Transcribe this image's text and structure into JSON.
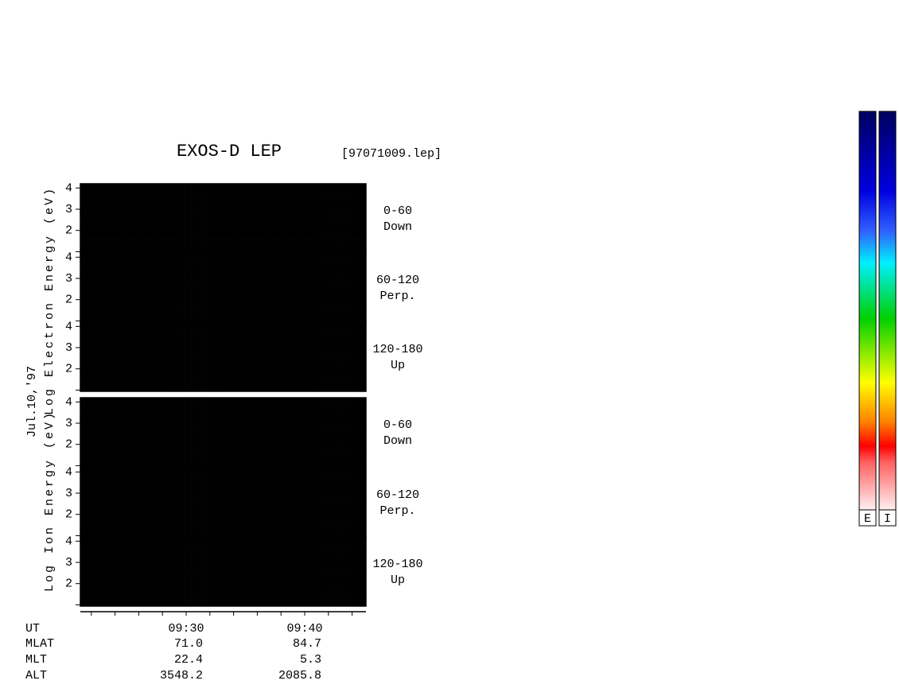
{
  "title": "EXOS-D LEP",
  "file": "[97071009.lep]",
  "date": "Jul.10,'97",
  "groups": [
    {
      "ylabel": "Log Electron Energy (eV)",
      "panels": [
        {
          "range": "0-60",
          "dir": "Down"
        },
        {
          "range": "60-120",
          "dir": "Perp."
        },
        {
          "range": "120-180",
          "dir": "Up"
        }
      ]
    },
    {
      "ylabel": "Log Ion Energy (eV)",
      "panels": [
        {
          "range": "0-60",
          "dir": "Down"
        },
        {
          "range": "60-120",
          "dir": "Perp."
        },
        {
          "range": "120-180",
          "dir": "Up"
        }
      ]
    }
  ],
  "yticks": [
    2,
    3,
    4
  ],
  "time_axis": {
    "label": "UT",
    "ticks": [
      "09:30",
      "09:40"
    ]
  },
  "ephemeris": [
    [
      "MLAT",
      "71.0",
      "84.7"
    ],
    [
      "MLT",
      "22.4",
      "5.3"
    ],
    [
      "ALT",
      "3548.2",
      "2085.8"
    ]
  ],
  "colorbars": [
    "E",
    "I"
  ]
}
